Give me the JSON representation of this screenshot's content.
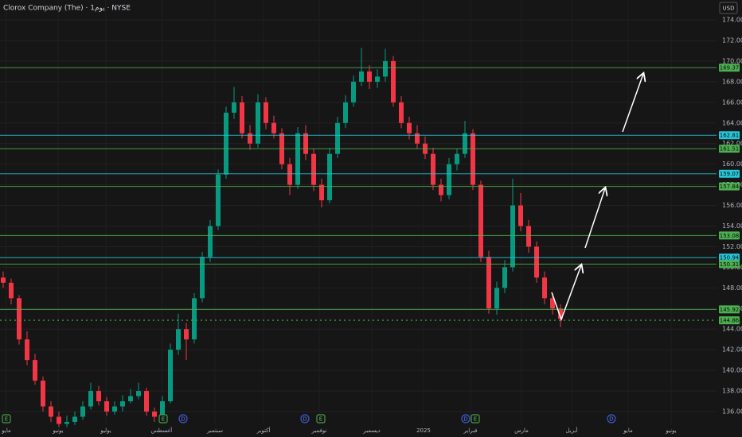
{
  "chart_data": {
    "type": "candlestick",
    "title": "Clorox Company (The) · 1يوم · NYSE",
    "currency": "USD",
    "ylim": [
      134.69,
      175.93
    ],
    "yticks": [
      {
        "value": 136,
        "label": "136.00"
      },
      {
        "value": 138,
        "label": "138.00"
      },
      {
        "value": 140,
        "label": "140.00"
      },
      {
        "value": 142,
        "label": "142.00"
      },
      {
        "value": 144,
        "label": "144.00"
      },
      {
        "value": 146,
        "label": "146.00"
      },
      {
        "value": 148,
        "label": "148.00"
      },
      {
        "value": 150,
        "label": "150.00"
      },
      {
        "value": 152,
        "label": "152.00"
      },
      {
        "value": 154,
        "label": "154.00"
      },
      {
        "value": 156,
        "label": "156.00"
      },
      {
        "value": 158,
        "label": "158.00"
      },
      {
        "value": 160,
        "label": "160.00"
      },
      {
        "value": 162,
        "label": "162.00"
      },
      {
        "value": 164,
        "label": "164.00"
      },
      {
        "value": 166,
        "label": "166.00"
      },
      {
        "value": 168,
        "label": "168.00"
      },
      {
        "value": 170,
        "label": "170.00"
      },
      {
        "value": 172,
        "label": "172.00"
      },
      {
        "value": 174,
        "label": "174.00"
      }
    ],
    "x_labels": [
      "مايو",
      "يونيو",
      "يوليو",
      "أغسطس",
      "سبتمبر",
      "أكتوبر",
      "نوفمبر",
      "ديسمبر",
      "2025",
      "فبراير",
      "مارس",
      "أبريل",
      "مايو",
      "يونيو"
    ],
    "up_color": "#089981",
    "down_color": "#f23645",
    "ohlc": [
      [
        149,
        149.6,
        148,
        148.5
      ],
      [
        148.5,
        148.9,
        146.4,
        147
      ],
      [
        147,
        147.3,
        142.5,
        143
      ],
      [
        143,
        143.8,
        140.5,
        141
      ],
      [
        141,
        141.6,
        138.6,
        139
      ],
      [
        139,
        139.4,
        136,
        136.5
      ],
      [
        136.5,
        137,
        135,
        135.5
      ],
      [
        135.5,
        136,
        134.5,
        134.8
      ],
      [
        134.8,
        135.6,
        134.5,
        135
      ],
      [
        135,
        136,
        134.7,
        135.5
      ],
      [
        135.5,
        137,
        135.2,
        136.5
      ],
      [
        136.5,
        138.8,
        136.2,
        138
      ],
      [
        138,
        138.5,
        136.6,
        137
      ],
      [
        137,
        137.4,
        135.6,
        136
      ],
      [
        136,
        137,
        135.7,
        136.5
      ],
      [
        136.5,
        137.6,
        136,
        137
      ],
      [
        137,
        138.2,
        136.8,
        137.5
      ],
      [
        137.5,
        138.8,
        137.2,
        138
      ],
      [
        138,
        138.3,
        135.6,
        136
      ],
      [
        136,
        136.4,
        135,
        135.5
      ],
      [
        135.5,
        137.5,
        135.2,
        137
      ],
      [
        137,
        142.6,
        136.8,
        142
      ],
      [
        142,
        145.5,
        141.5,
        144
      ],
      [
        144,
        144.6,
        141,
        143
      ],
      [
        143,
        147.5,
        142.6,
        147
      ],
      [
        147,
        151.5,
        146.6,
        151
      ],
      [
        151,
        154.6,
        150.5,
        154
      ],
      [
        154,
        159.5,
        153.6,
        159
      ],
      [
        159,
        165.6,
        158.6,
        165
      ],
      [
        165,
        167.5,
        164.4,
        166
      ],
      [
        166,
        166.6,
        162.5,
        163
      ],
      [
        163,
        163.8,
        161.4,
        162
      ],
      [
        162,
        166.8,
        161.6,
        166
      ],
      [
        166,
        166.5,
        163.4,
        164
      ],
      [
        164,
        164.7,
        162.5,
        163
      ],
      [
        163,
        163.5,
        159.5,
        160
      ],
      [
        160,
        160.6,
        157,
        158
      ],
      [
        158,
        163.6,
        157.6,
        163
      ],
      [
        163,
        163.8,
        160.4,
        161
      ],
      [
        161,
        161.5,
        157.4,
        158
      ],
      [
        158,
        158.6,
        155.8,
        156.5
      ],
      [
        156.5,
        161.6,
        156.2,
        161
      ],
      [
        161,
        164.6,
        160.6,
        164
      ],
      [
        164,
        166.7,
        163.5,
        166
      ],
      [
        166,
        168.6,
        165.6,
        168
      ],
      [
        168,
        171.3,
        167.6,
        169
      ],
      [
        169,
        169.6,
        167.3,
        168
      ],
      [
        168,
        169.2,
        167.4,
        168.5
      ],
      [
        168.5,
        171.2,
        168,
        170
      ],
      [
        170,
        170.5,
        165.6,
        166
      ],
      [
        166,
        166.6,
        163.5,
        164
      ],
      [
        164,
        164.6,
        162.4,
        163
      ],
      [
        163,
        163.8,
        161.5,
        162
      ],
      [
        162,
        162.7,
        160.5,
        161
      ],
      [
        161,
        161.6,
        157.5,
        158
      ],
      [
        158,
        158.6,
        156.4,
        157
      ],
      [
        157,
        160.6,
        156.6,
        160
      ],
      [
        160,
        161.5,
        159.4,
        161
      ],
      [
        161,
        164.2,
        160.6,
        163
      ],
      [
        163,
        163.4,
        157.5,
        158
      ],
      [
        158,
        158.4,
        150.5,
        151
      ],
      [
        151,
        151.6,
        145.5,
        146
      ],
      [
        146,
        148.6,
        145.4,
        148
      ],
      [
        148,
        150.7,
        147.5,
        150
      ],
      [
        150,
        158.6,
        149.6,
        156
      ],
      [
        156,
        157.2,
        153.5,
        154
      ],
      [
        154,
        154.6,
        151.4,
        152
      ],
      [
        152,
        152.5,
        148.5,
        149
      ],
      [
        149,
        149.6,
        146.4,
        147
      ],
      [
        147,
        147.5,
        145.4,
        146
      ],
      [
        146,
        146.4,
        144.2,
        145
      ]
    ],
    "levels": [
      {
        "value": 169.37,
        "color": "#4caf50"
      },
      {
        "value": 162.81,
        "color": "#26c6da"
      },
      {
        "value": 161.51,
        "color": "#4caf50"
      },
      {
        "value": 159.07,
        "color": "#26c6da"
      },
      {
        "value": 157.84,
        "color": "#4caf50"
      },
      {
        "value": 153.08,
        "color": "#4caf50"
      },
      {
        "value": 150.94,
        "color": "#26c6da"
      },
      {
        "value": 150.31,
        "color": "#4caf50"
      },
      {
        "value": 145.92,
        "color": "#4caf50"
      }
    ],
    "last_price": {
      "value": 144.86,
      "color": "#4caf50"
    },
    "events": [
      {
        "label": "E",
        "color": "#2e7d32"
      },
      {
        "label": "E",
        "color": "#2e7d32"
      },
      {
        "label": "D",
        "color": "#1e40af"
      },
      {
        "label": "D",
        "color": "#1e40af"
      },
      {
        "label": "E",
        "color": "#2e7d32"
      },
      {
        "label": "D",
        "color": "#1e40af"
      },
      {
        "label": "E",
        "color": "#2e7d32"
      },
      {
        "label": "D",
        "color": "#1e40af"
      }
    ]
  }
}
